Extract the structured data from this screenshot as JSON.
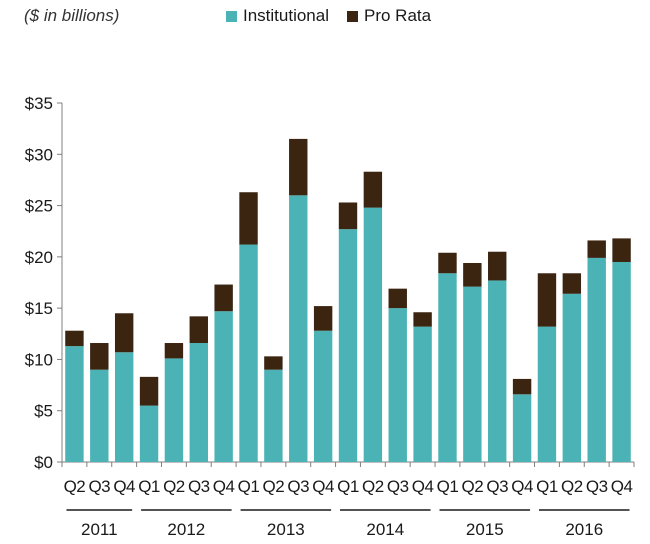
{
  "chart_data": {
    "type": "bar",
    "stacked": true,
    "subtitle": "($ in billions)",
    "categories": [
      "Q2",
      "Q3",
      "Q4",
      "Q1",
      "Q2",
      "Q3",
      "Q4",
      "Q1",
      "Q2",
      "Q3",
      "Q4",
      "Q1",
      "Q2",
      "Q3",
      "Q4",
      "Q1",
      "Q2",
      "Q3",
      "Q4",
      "Q1",
      "Q2",
      "Q3",
      "Q4"
    ],
    "years": [
      {
        "label": "2011",
        "from": 0,
        "to": 2
      },
      {
        "label": "2012",
        "from": 3,
        "to": 6
      },
      {
        "label": "2013",
        "from": 7,
        "to": 10
      },
      {
        "label": "2014",
        "from": 11,
        "to": 14
      },
      {
        "label": "2015",
        "from": 15,
        "to": 18
      },
      {
        "label": "2016",
        "from": 19,
        "to": 22
      }
    ],
    "series": [
      {
        "name": "Institutional",
        "color": "#4bb3b5",
        "values": [
          11.3,
          9.0,
          10.7,
          5.5,
          10.1,
          11.6,
          14.7,
          21.2,
          9.0,
          26.0,
          12.8,
          22.7,
          24.8,
          15.0,
          13.2,
          18.4,
          17.1,
          17.7,
          6.6,
          13.2,
          16.4,
          19.9,
          19.5
        ]
      },
      {
        "name": "Pro Rata",
        "color": "#3b2410",
        "values": [
          1.5,
          2.6,
          3.8,
          2.8,
          1.5,
          2.6,
          2.6,
          5.1,
          1.3,
          5.5,
          2.4,
          2.6,
          3.5,
          1.9,
          1.4,
          2.0,
          2.3,
          2.8,
          1.5,
          5.2,
          2.0,
          1.7,
          2.3
        ]
      }
    ],
    "ylim": [
      0,
      35
    ],
    "yticks": [
      0,
      5,
      10,
      15,
      20,
      25,
      30,
      35
    ],
    "ytick_prefix": "$",
    "grid": false,
    "legend_position": "top"
  }
}
